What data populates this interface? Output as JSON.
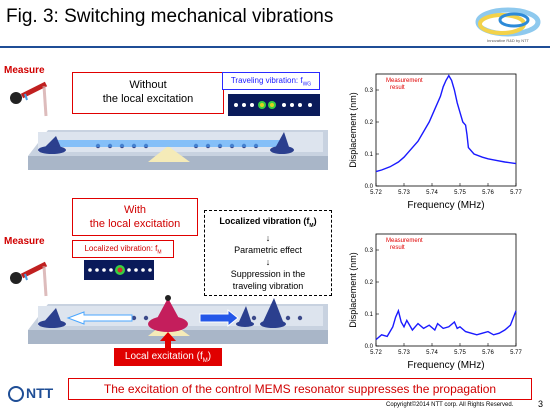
{
  "title": "Fig. 3: Switching mechanical vibrations",
  "logo_text": "Innovative R&D by NTT",
  "top": {
    "measure_label": "Measure",
    "condition_line1": "Without",
    "condition_line2": "the local excitation",
    "traveling_label": "Traveling vibration: f",
    "traveling_sub": "WG"
  },
  "bottom": {
    "measure_label": "Measure",
    "condition_line1": "With",
    "condition_line2": "the local excitation",
    "localized_label": "Localized vibration: f",
    "localized_sub": "M",
    "flow_line1": "Localized vibration (f",
    "flow_line1_sub": "M",
    "flow_line1_end": ")",
    "flow_arrow": "↓",
    "flow_line2": "Parametric effect",
    "flow_line3": "Suppression in the",
    "flow_line4": "traveling vibration",
    "excitation_label": "Local excitation (f",
    "excitation_sub": "M",
    "excitation_end": ")"
  },
  "footer": {
    "message": "The excitation of the control MEMS resonator suppresses the propagation",
    "copyright": "Copyright©2014 NTT corp. All Rights Reserved.",
    "page": "3",
    "brand": "NTT"
  },
  "chart_data": [
    {
      "type": "line",
      "annotation": "Measurement result",
      "xlabel": "Frequency (MHz)",
      "ylabel": "Displacement (nm)",
      "xlim": [
        5.72,
        5.77
      ],
      "ylim": [
        0.0,
        0.35
      ],
      "xticks": [
        "5.72",
        "5.73",
        "5.74",
        "5.75",
        "5.76",
        "5.77"
      ],
      "yticks": [
        "0.0",
        "0.1",
        "0.2",
        "0.3"
      ],
      "color": "#1a1aff",
      "x": [
        5.72,
        5.722,
        5.725,
        5.728,
        5.73,
        5.732,
        5.735,
        5.737,
        5.739,
        5.741,
        5.743,
        5.744,
        5.745,
        5.746,
        5.747,
        5.748,
        5.749,
        5.75,
        5.751,
        5.752,
        5.7525,
        5.753,
        5.755,
        5.758,
        5.76,
        5.763,
        5.766,
        5.77
      ],
      "y": [
        0.045,
        0.05,
        0.06,
        0.075,
        0.09,
        0.11,
        0.14,
        0.17,
        0.2,
        0.24,
        0.28,
        0.31,
        0.33,
        0.345,
        0.33,
        0.3,
        0.26,
        0.23,
        0.2,
        0.19,
        0.16,
        0.12,
        0.1,
        0.09,
        0.085,
        0.08,
        0.075,
        0.07
      ]
    },
    {
      "type": "line",
      "annotation": "Measurement result",
      "xlabel": "Frequency (MHz)",
      "ylabel": "Displacement (nm)",
      "xlim": [
        5.72,
        5.77
      ],
      "ylim": [
        0.0,
        0.35
      ],
      "xticks": [
        "5.72",
        "5.73",
        "5.74",
        "5.75",
        "5.76",
        "5.77"
      ],
      "yticks": [
        "0.0",
        "0.1",
        "0.2",
        "0.3"
      ],
      "color": "#1a1aff",
      "x": [
        5.72,
        5.722,
        5.724,
        5.726,
        5.727,
        5.728,
        5.729,
        5.73,
        5.731,
        5.733,
        5.735,
        5.737,
        5.739,
        5.741,
        5.742,
        5.744,
        5.746,
        5.748,
        5.749,
        5.75,
        5.752,
        5.754,
        5.756,
        5.758,
        5.76,
        5.762,
        5.764,
        5.766,
        5.768,
        5.77
      ],
      "y": [
        0.02,
        0.035,
        0.03,
        0.06,
        0.09,
        0.11,
        0.075,
        0.06,
        0.08,
        0.05,
        0.07,
        0.055,
        0.065,
        0.05,
        0.07,
        0.055,
        0.06,
        0.075,
        0.055,
        0.06,
        0.045,
        0.04,
        0.035,
        0.04,
        0.045,
        0.035,
        0.04,
        0.05,
        0.065,
        0.11
      ]
    }
  ]
}
